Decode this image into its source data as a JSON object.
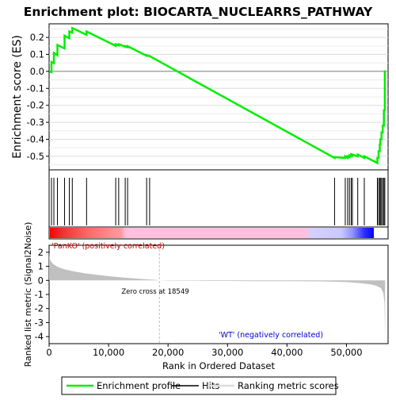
{
  "title": "Enrichment plot: BIOCARTA_NUCLEARRS_PATHWAY",
  "colors": {
    "enrichment_line": "#00ee00",
    "hits": "#000000",
    "ranking_fill": "#c0c0c0",
    "zero_cross_line": "#bfbfbf",
    "positive_label": "#cc0000",
    "negative_label": "#0000cc",
    "gradient": [
      "#ff0000",
      "#ffaaaa",
      "#ffc0e0",
      "#c0c0ff",
      "#0000ff"
    ]
  },
  "chart_data": [
    {
      "type": "line",
      "name": "enrichment-score",
      "title": "Enrichment plot: BIOCARTA_NUCLEARRS_PATHWAY",
      "xlabel": "",
      "ylabel": "Enrichment score (ES)",
      "xlim": [
        0,
        57000
      ],
      "ylim": [
        -0.58,
        0.28
      ],
      "yticks": [
        0.2,
        0.1,
        0.0,
        -0.1,
        -0.2,
        -0.3,
        -0.4,
        -0.5
      ],
      "ytick_labels": [
        "0.2",
        "0.1",
        "0.0",
        "-0.1",
        "-0.2",
        "-0.3",
        "-0.4",
        "-0.5"
      ],
      "grid": true,
      "series": [
        {
          "name": "Enrichment profile",
          "x": [
            0,
            400,
            400,
            800,
            800,
            1400,
            1400,
            2600,
            2600,
            3400,
            3400,
            3900,
            3900,
            6300,
            6300,
            11200,
            11200,
            11700,
            11700,
            12800,
            12800,
            13200,
            13200,
            16400,
            16400,
            16900,
            16900,
            48000,
            48000,
            49800,
            49800,
            50200,
            50200,
            50500,
            50500,
            50800,
            50800,
            51000,
            51000,
            51900,
            51900,
            53000,
            53000,
            55200,
            55200,
            55400,
            55400,
            55600,
            55600,
            55700,
            55700,
            55900,
            55900,
            56100,
            56100,
            56300,
            56300,
            56450,
            56450,
            56550
          ],
          "y": [
            0.0,
            -0.005,
            0.055,
            0.048,
            0.108,
            0.095,
            0.155,
            0.135,
            0.21,
            0.195,
            0.235,
            0.228,
            0.255,
            0.215,
            0.235,
            0.15,
            0.16,
            0.153,
            0.16,
            0.145,
            0.148,
            0.142,
            0.148,
            0.092,
            0.095,
            0.09,
            0.09,
            -0.51,
            -0.505,
            -0.51,
            -0.5,
            -0.51,
            -0.5,
            -0.505,
            -0.495,
            -0.5,
            -0.49,
            -0.495,
            -0.49,
            -0.5,
            -0.49,
            -0.51,
            -0.5,
            -0.54,
            -0.51,
            -0.51,
            -0.47,
            -0.47,
            -0.43,
            -0.43,
            -0.4,
            -0.4,
            -0.36,
            -0.36,
            -0.32,
            -0.32,
            -0.23,
            -0.23,
            0.0,
            0.0
          ]
        }
      ]
    },
    {
      "type": "scatter",
      "name": "hits",
      "title": "",
      "xlim": [
        0,
        57000
      ],
      "series": [
        {
          "name": "Hits",
          "x": [
            400,
            800,
            1400,
            2600,
            3400,
            3900,
            6300,
            11200,
            11700,
            12800,
            13200,
            16400,
            16900,
            48000,
            49800,
            50200,
            50500,
            50800,
            51000,
            51900,
            53000,
            55200,
            55400,
            55600,
            55700,
            55900,
            56100,
            56300,
            56450
          ]
        }
      ]
    },
    {
      "type": "area",
      "name": "ranked-list-metric",
      "title": "",
      "xlabel": "Rank in Ordered Dataset",
      "ylabel": "Ranked list metric (Signal2Noise)",
      "xlim": [
        0,
        57000
      ],
      "ylim": [
        -4.5,
        2.5
      ],
      "xticks": [
        0,
        10000,
        20000,
        30000,
        40000,
        50000
      ],
      "xtick_labels": [
        "0",
        "10,000",
        "20,000",
        "30,000",
        "40,000",
        "50,000"
      ],
      "yticks": [
        2,
        1,
        0,
        -1,
        -2,
        -3,
        -4
      ],
      "ytick_labels": [
        "2",
        "1",
        "0",
        "-1",
        "-2",
        "-3",
        "-4"
      ],
      "series": [
        {
          "name": "Ranking metric scores",
          "x": [
            0,
            50,
            300,
            700,
            1500,
            2500,
            4000,
            6000,
            8000,
            10000,
            12000,
            14000,
            16000,
            18000,
            18549,
            20000,
            25000,
            30000,
            35000,
            40000,
            45000,
            47000,
            50000,
            52000,
            54000,
            55000,
            55800,
            56200,
            56400,
            56500
          ],
          "y": [
            2.0,
            1.6,
            1.35,
            1.15,
            0.95,
            0.8,
            0.65,
            0.5,
            0.4,
            0.3,
            0.22,
            0.15,
            0.09,
            0.04,
            0.0,
            -0.02,
            -0.03,
            -0.04,
            -0.05,
            -0.06,
            -0.07,
            -0.08,
            -0.12,
            -0.18,
            -0.28,
            -0.38,
            -0.55,
            -0.9,
            -1.6,
            -4.3
          ]
        }
      ],
      "annotations": {
        "zero_cross_x": 18549,
        "zero_cross_text": "Zero cross at 18549",
        "positive_text": "'PanKO' (positively correlated)",
        "negative_text": "'WT' (negatively correlated)"
      }
    }
  ],
  "legend": {
    "placement": "bottom",
    "items": [
      {
        "label": "Enrichment profile",
        "color": "#00ee00"
      },
      {
        "label": "Hits",
        "color": "#000000"
      },
      {
        "label": "Ranking metric scores",
        "color": "#c0c0c0"
      }
    ]
  }
}
